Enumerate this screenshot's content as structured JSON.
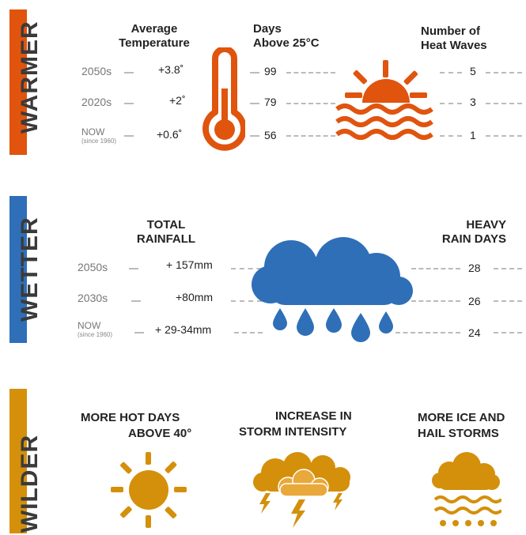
{
  "colors": {
    "warmer": "#e0540e",
    "wetter": "#2f6fb8",
    "wilder": "#d4900b",
    "dash": "#bbbbbb"
  },
  "warmer": {
    "title": "WARMER",
    "h_avg": "Average\nTemperature",
    "h_days": "Days\nAbove 25°C",
    "h_heat": "Number of\nHeat Waves",
    "rows": [
      {
        "period": "2050s",
        "sub": "",
        "temp": "+3.8˚",
        "days": "99",
        "waves": "5"
      },
      {
        "period": "2020s",
        "sub": "",
        "temp": "+2˚",
        "days": "79",
        "waves": "3"
      },
      {
        "period": "NOW",
        "sub": "(since 1960)",
        "temp": "+0.6˚",
        "days": "56",
        "waves": "1"
      }
    ]
  },
  "wetter": {
    "title": "WETTER",
    "h_rain": "TOTAL\nRAINFALL",
    "h_heavy": "HEAVY\nRAIN DAYS",
    "rows": [
      {
        "period": "2050s",
        "sub": "",
        "rain": "+ 157mm",
        "heavy": "28"
      },
      {
        "period": "2030s",
        "sub": "",
        "rain": "+80mm",
        "heavy": "26"
      },
      {
        "period": "NOW",
        "sub": "(since 1960)",
        "rain": "+ 29-34mm",
        "heavy": "24"
      }
    ]
  },
  "wilder": {
    "title": "WILDER",
    "hot1": "MORE HOT DAYS",
    "hot2": "ABOVE 40°",
    "storm1": "INCREASE IN",
    "storm2": "STORM INTENSITY",
    "ice1": "MORE ICE AND",
    "ice2": "HAIL STORMS"
  }
}
